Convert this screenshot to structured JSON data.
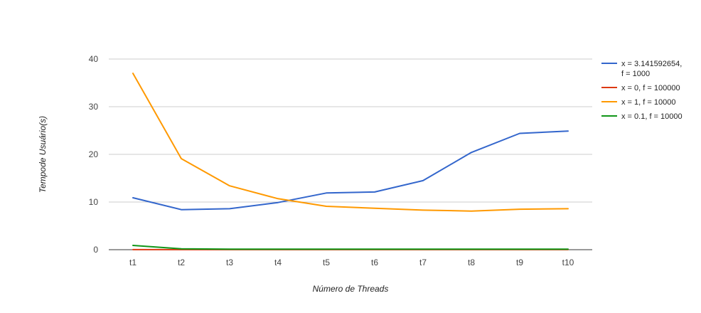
{
  "chart_data": {
    "type": "line",
    "title": "",
    "xlabel": "Número de Threads",
    "ylabel": "Tempode Usuário(s)",
    "categories": [
      "t1",
      "t2",
      "t3",
      "t4",
      "t5",
      "t6",
      "t7",
      "t8",
      "t9",
      "t10"
    ],
    "ylim": [
      0,
      40
    ],
    "yticks": [
      0,
      10,
      20,
      30,
      40
    ],
    "grid": true,
    "legend_position": "right",
    "series": [
      {
        "name": "x = 3.141592654, f = 1000",
        "name_lines": [
          "x = 3.141592654,",
          "f = 1000"
        ],
        "color": "#3366cc",
        "values": [
          10.9,
          8.4,
          8.6,
          9.9,
          11.9,
          12.1,
          14.5,
          20.4,
          24.4,
          24.9
        ]
      },
      {
        "name": "x = 0, f = 100000",
        "name_lines": [
          "x = 0, f = 100000"
        ],
        "color": "#dc3912",
        "values": [
          0.02,
          0.02,
          0.02,
          0.02,
          0.02,
          0.02,
          0.02,
          0.02,
          0.02,
          0.02
        ]
      },
      {
        "name": "x = 1, f = 10000",
        "name_lines": [
          "x = 1, f = 10000"
        ],
        "color": "#ff9900",
        "values": [
          37.0,
          19.1,
          13.4,
          10.7,
          9.1,
          8.7,
          8.3,
          8.1,
          8.5,
          8.6
        ]
      },
      {
        "name": "x = 0.1, f = 10000",
        "name_lines": [
          "x = 0.1, f = 10000"
        ],
        "color": "#109618",
        "values": [
          0.9,
          0.2,
          0.1,
          0.1,
          0.1,
          0.1,
          0.1,
          0.1,
          0.1,
          0.1
        ]
      }
    ]
  }
}
